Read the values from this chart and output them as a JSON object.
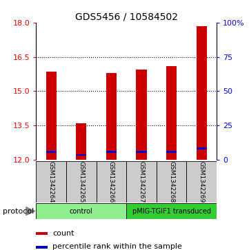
{
  "title": "GDS5456 / 10584502",
  "samples": [
    "GSM1342264",
    "GSM1342265",
    "GSM1342266",
    "GSM1342267",
    "GSM1342268",
    "GSM1342269"
  ],
  "red_values": [
    15.85,
    13.6,
    15.8,
    15.95,
    16.1,
    17.85
  ],
  "blue_values": [
    12.35,
    12.22,
    12.35,
    12.35,
    12.35,
    12.52
  ],
  "bar_bottom": 12.0,
  "ylim": [
    12,
    18
  ],
  "yticks_left": [
    12,
    13.5,
    15,
    16.5,
    18
  ],
  "yticks_right": [
    0,
    25,
    50,
    75,
    100
  ],
  "grid_values": [
    13.5,
    15,
    16.5
  ],
  "right_ylim": [
    0,
    100
  ],
  "protocol_groups": [
    {
      "label": "control",
      "start": 0,
      "end": 3,
      "color": "#90EE90"
    },
    {
      "label": "pMIG-TGIF1 transduced",
      "start": 3,
      "end": 6,
      "color": "#32CD32"
    }
  ],
  "bar_color": "#CC0000",
  "blue_color": "#0000CC",
  "bar_width": 0.35,
  "label_area_color": "#CCCCCC",
  "legend_red_label": "count",
  "legend_blue_label": "percentile rank within the sample",
  "protocol_label": "protocol",
  "title_fontsize": 10,
  "tick_fontsize": 8,
  "sample_fontsize": 6.5
}
